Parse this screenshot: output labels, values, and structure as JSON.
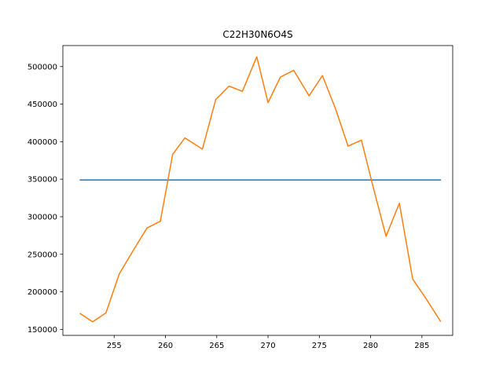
{
  "chart_data": {
    "type": "line",
    "title": "C22H30N6O4S",
    "xlabel": "",
    "ylabel": "",
    "xlim": [
      250.0,
      288.0
    ],
    "ylim": [
      142000,
      528000
    ],
    "x_ticks": [
      255,
      260,
      265,
      270,
      275,
      280,
      285
    ],
    "y_ticks": [
      150000,
      200000,
      250000,
      300000,
      350000,
      400000,
      450000,
      500000
    ],
    "grid": false,
    "legend": "none",
    "series": [
      {
        "color": "#1f77b4",
        "x": [
          251.7,
          286.8
        ],
        "y": [
          349000,
          349000
        ]
      },
      {
        "color": "#ff7f0e",
        "x": [
          251.7,
          252.9,
          254.2,
          255.5,
          256.9,
          258.2,
          259.5,
          260.7,
          261.9,
          263.6,
          264.9,
          266.2,
          267.5,
          268.9,
          270.0,
          271.2,
          272.5,
          274.0,
          275.3,
          276.6,
          277.8,
          279.1,
          280.2,
          281.5,
          282.8,
          284.1,
          285.4,
          286.8
        ],
        "y": [
          171000,
          160000,
          172000,
          224000,
          256000,
          285000,
          294000,
          383000,
          405000,
          390000,
          456000,
          474000,
          467000,
          513000,
          452000,
          486000,
          495000,
          461000,
          488000,
          443000,
          394000,
          402000,
          342000,
          274000,
          318000,
          217000,
          191000,
          161000
        ]
      }
    ]
  }
}
